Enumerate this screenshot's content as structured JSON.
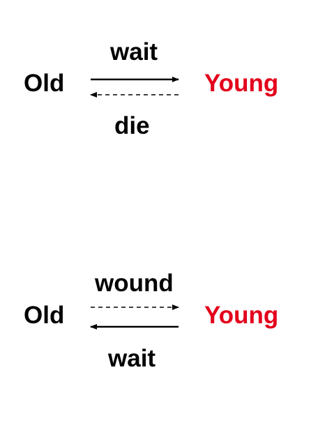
{
  "colors": {
    "text": "#000000",
    "young": "#e3001b",
    "arrow": "#000000"
  },
  "diagrams": [
    {
      "left_node": "Old",
      "right_node": "Young",
      "top_label": "wait",
      "bottom_label": "die",
      "forward_arrow_style": "solid",
      "backward_arrow_style": "dashed"
    },
    {
      "left_node": "Old",
      "right_node": "Young",
      "top_label": "wound",
      "bottom_label": "wait",
      "forward_arrow_style": "dashed",
      "backward_arrow_style": "solid"
    }
  ]
}
